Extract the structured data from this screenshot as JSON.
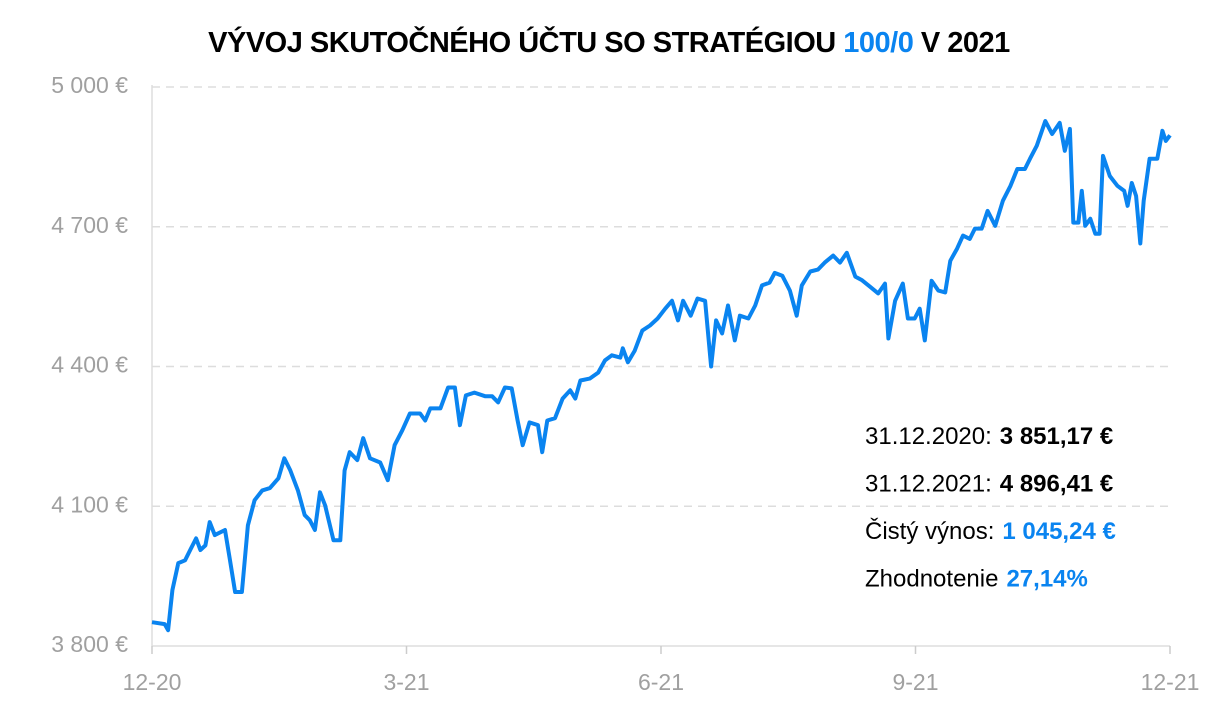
{
  "chart_data": {
    "type": "line",
    "title_parts": [
      "VÝVOJ SKUTOČNÉHO ÚČTU SO STRATÉGIOU ",
      "100/0",
      " V 2021"
    ],
    "title_colors": [
      "#000000",
      "#0a84f0",
      "#000000"
    ],
    "x": [
      0,
      0.15,
      0.19,
      0.24,
      0.31,
      0.39,
      0.45,
      0.52,
      0.57,
      0.63,
      0.68,
      0.74,
      0.86,
      0.92,
      0.98,
      1.06,
      1.13,
      1.21,
      1.3,
      1.39,
      1.49,
      1.56,
      1.63,
      1.72,
      1.8,
      1.86,
      1.92,
      1.98,
      2.04,
      2.14,
      2.22,
      2.27,
      2.33,
      2.42,
      2.49,
      2.57,
      2.69,
      2.78,
      2.86,
      2.95,
      3.04,
      3.16,
      3.22,
      3.28,
      3.4,
      3.49,
      3.57,
      3.63,
      3.7,
      3.8,
      3.93,
      4.01,
      4.08,
      4.16,
      4.24,
      4.31,
      4.37,
      4.45,
      4.55,
      4.6,
      4.66,
      4.75,
      4.84,
      4.93,
      4.99,
      5.05,
      5.16,
      5.26,
      5.34,
      5.42,
      5.52,
      5.55,
      5.61,
      5.69,
      5.78,
      5.87,
      5.96,
      6.05,
      6.13,
      6.2,
      6.26,
      6.35,
      6.43,
      6.52,
      6.59,
      6.65,
      6.72,
      6.79,
      6.87,
      6.93,
      7.03,
      7.11,
      7.19,
      7.28,
      7.34,
      7.43,
      7.52,
      7.6,
      7.66,
      7.76,
      7.85,
      7.93,
      8.03,
      8.11,
      8.19,
      8.29,
      8.37,
      8.46,
      8.56,
      8.64,
      8.68,
      8.76,
      8.85,
      8.91,
      8.99,
      9.05,
      9.11,
      9.19,
      9.27,
      9.35,
      9.41,
      9.49,
      9.56,
      9.64,
      9.7,
      9.78,
      9.85,
      9.94,
      10.03,
      10.12,
      10.2,
      10.29,
      10.35,
      10.43,
      10.53,
      10.61,
      10.7,
      10.76,
      10.82,
      10.86,
      10.92,
      10.96,
      11,
      11.06,
      11.12,
      11.17,
      11.21,
      11.29,
      11.38,
      11.46,
      11.5,
      11.55,
      11.6,
      11.65,
      11.69,
      11.76,
      11.85,
      11.91,
      11.95,
      12
    ],
    "series": [
      {
        "color": "#0a84f0",
        "values": [
          3851.17,
          3847,
          3834,
          3920,
          3978,
          3984,
          4006,
          4031,
          4006,
          4016,
          4066,
          4038,
          4049,
          3984,
          3916,
          3916,
          4059,
          4113,
          4134,
          4139,
          4160,
          4203,
          4177,
          4134,
          4081,
          4070,
          4049,
          4130,
          4102,
          4027,
          4027,
          4177,
          4216,
          4199,
          4246,
          4203,
          4194,
          4156,
          4231,
          4263,
          4299,
          4299,
          4284,
          4310,
          4310,
          4355,
          4355,
          4274,
          4338,
          4344,
          4336,
          4336,
          4323,
          4355,
          4353,
          4284,
          4231,
          4280,
          4274,
          4216,
          4284,
          4289,
          4331,
          4349,
          4331,
          4370,
          4374,
          4387,
          4413,
          4424,
          4419,
          4439,
          4409,
          4434,
          4477,
          4488,
          4503,
          4524,
          4541,
          4499,
          4541,
          4509,
          4546,
          4541,
          4400,
          4499,
          4471,
          4531,
          4456,
          4509,
          4503,
          4531,
          4574,
          4580,
          4601,
          4595,
          4563,
          4509,
          4574,
          4604,
          4608,
          4623,
          4638,
          4623,
          4644,
          4593,
          4585,
          4572,
          4557,
          4578,
          4460,
          4541,
          4578,
          4503,
          4503,
          4524,
          4456,
          4584,
          4563,
          4559,
          4627,
          4653,
          4681,
          4674,
          4696,
          4696,
          4734,
          4702,
          4756,
          4788,
          4824,
          4824,
          4846,
          4874,
          4927,
          4899,
          4923,
          4863,
          4910,
          4709,
          4709,
          4777,
          4702,
          4717,
          4685,
          4685,
          4852,
          4809,
          4788,
          4777,
          4745,
          4794,
          4766,
          4664,
          4756,
          4846,
          4846,
          4906,
          4884,
          4896.41
        ]
      }
    ],
    "xlim": [
      0,
      12
    ],
    "xticks": [
      {
        "value": 0,
        "label": "12-20"
      },
      {
        "value": 3,
        "label": "3-21"
      },
      {
        "value": 6,
        "label": "6-21"
      },
      {
        "value": 9,
        "label": "9-21"
      },
      {
        "value": 12,
        "label": "12-21"
      }
    ],
    "ylim": [
      3800,
      5000
    ],
    "yticks": [
      {
        "value": 3800,
        "label": "3 800 €"
      },
      {
        "value": 4100,
        "label": "4 100 €"
      },
      {
        "value": 4400,
        "label": "4 400 €"
      },
      {
        "value": 4700,
        "label": "4 700 €"
      },
      {
        "value": 5000,
        "label": "5 000 €"
      }
    ],
    "grid": true,
    "annotations": [
      {
        "label": "31.12.2020:",
        "value": "3 851,17 €",
        "value_color": "#000000"
      },
      {
        "label": "31.12.2021:",
        "value": "4 896,41 €",
        "value_color": "#000000"
      },
      {
        "label": "Čistý výnos:",
        "value": "1 045,24 €",
        "value_color": "#0a84f0"
      },
      {
        "label": "Zhodnotenie",
        "value": "27,14%",
        "value_color": "#0a84f0"
      }
    ]
  }
}
